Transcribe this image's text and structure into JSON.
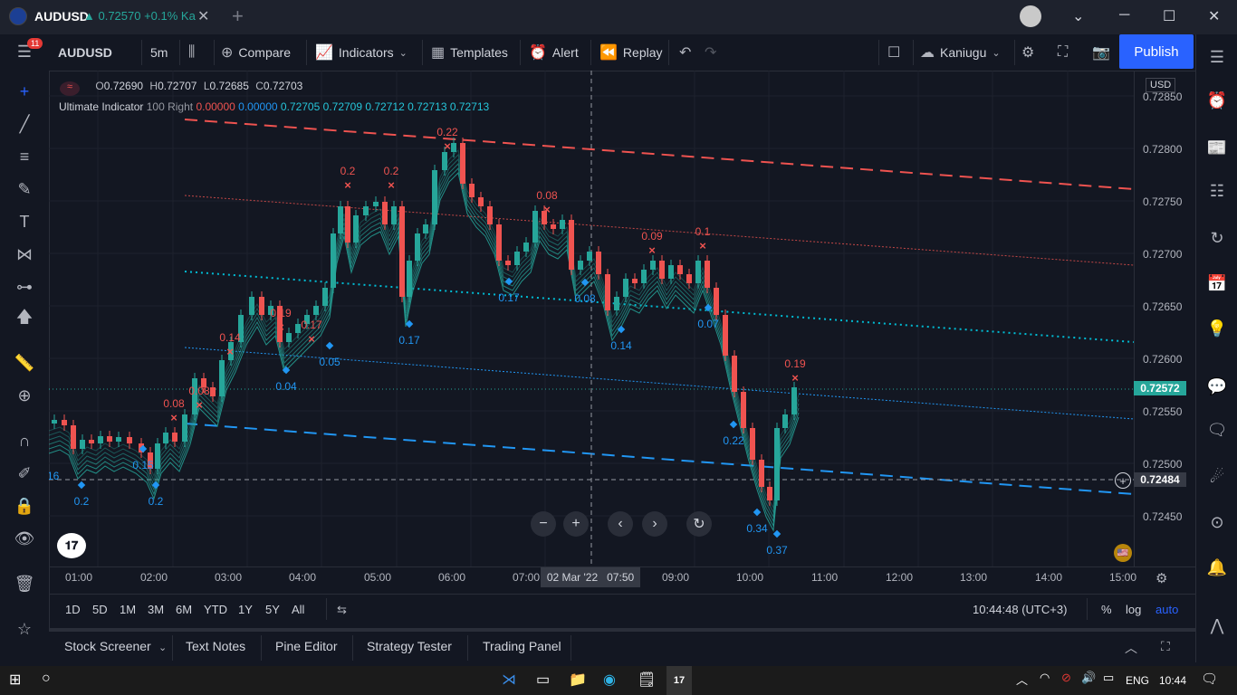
{
  "window": {
    "tab_symbol": "AUDUSD",
    "tab_price": "▲ 0.72570 +0.1% Ka"
  },
  "toolbar": {
    "symbol": "AUDUSD",
    "interval": "5m",
    "compare": "Compare",
    "indicators": "Indicators",
    "templates": "Templates",
    "alert": "Alert",
    "replay": "Replay",
    "layout_name": "Kaniugu",
    "publish": "Publish",
    "notifications_count": "11"
  },
  "legend": {
    "o_label": "O",
    "o": "0.72690",
    "h_label": "H",
    "h": "0.72707",
    "l_label": "L",
    "l": "0.72685",
    "c_label": "C",
    "c": "0.72703",
    "indicator_name": "Ultimate Indicator",
    "indicator_params": "100 Right",
    "indicator_values": [
      "0.00000",
      "0.00000",
      "0.72705",
      "0.72709",
      "0.72712",
      "0.72713",
      "0.72713"
    ]
  },
  "price_axis": {
    "currency": "USD",
    "labels": [
      "0.72850",
      "0.72800",
      "0.72750",
      "0.72700",
      "0.72650",
      "0.72600",
      "0.72550",
      "0.72500",
      "0.72450"
    ],
    "last_price": "0.72572",
    "crosshair_price": "0.72484"
  },
  "time_axis": {
    "labels": [
      "01:00",
      "02:00",
      "03:00",
      "04:00",
      "05:00",
      "06:00",
      "07:00",
      "09:00",
      "10:00",
      "11:00",
      "12:00",
      "13:00",
      "14:00",
      "15:00"
    ],
    "crosshair_time": "02 Mar '22   07:50"
  },
  "annotations": {
    "sell": [
      "0.22",
      "0.2",
      "0.2",
      "0.08",
      "0.19",
      "0.17",
      "0.14",
      "0.08",
      "0.08",
      "0.09",
      "0.1",
      "0.19"
    ],
    "buy": [
      "0.2",
      "0.2",
      "0.15",
      "0.04",
      "0.05",
      "0.17",
      "0.17",
      "0.08",
      "0.14",
      "0.07",
      "0.22",
      "0.34",
      "0.37"
    ],
    "left_edge": "16"
  },
  "range_bar": {
    "ranges": [
      "1D",
      "5D",
      "1M",
      "3M",
      "6M",
      "YTD",
      "1Y",
      "5Y",
      "All"
    ],
    "clock": "10:44:48 (UTC+3)",
    "percent": "%",
    "log": "log",
    "auto": "auto"
  },
  "panel_tabs": [
    "Stock Screener",
    "Text Notes",
    "Pine Editor",
    "Strategy Tester",
    "Trading Panel"
  ],
  "taskbar": {
    "lang": "ENG",
    "time": "10:44"
  },
  "colors": {
    "bg": "#131722",
    "up": "#26a69a",
    "down": "#ef5350",
    "accent": "#2962ff",
    "buy_marker": "#2196f3",
    "sell_marker": "#ef5350"
  }
}
